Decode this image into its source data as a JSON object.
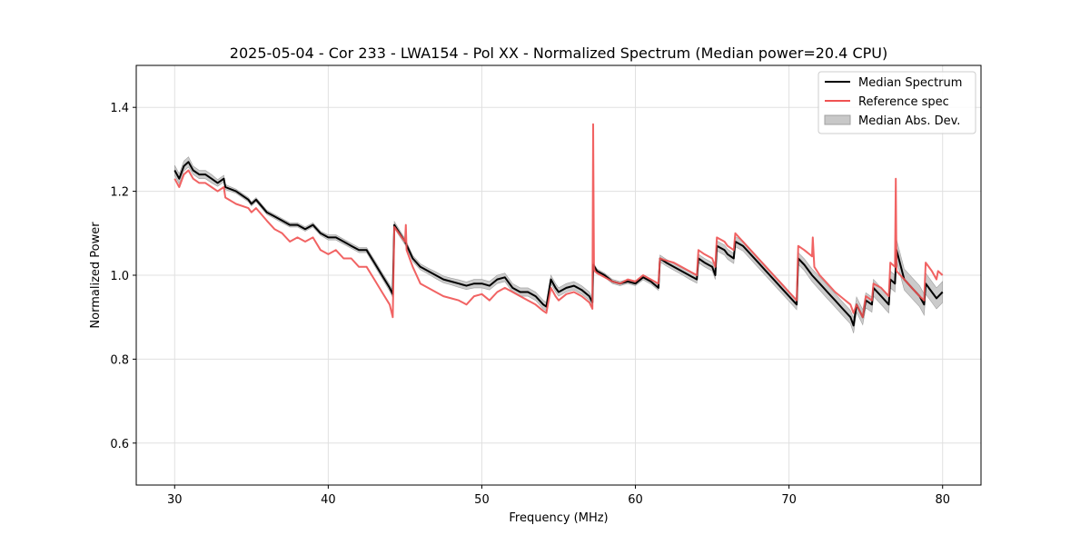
{
  "chart_data": {
    "type": "line",
    "title": "2025-05-04 - Cor 233 - LWA154 - Pol XX - Normalized Spectrum (Median power=20.4 CPU)",
    "xlabel": "Frequency (MHz)",
    "ylabel": "Normalized Power",
    "xlim": [
      27.5,
      82.5
    ],
    "ylim": [
      0.5,
      1.5
    ],
    "xticks": [
      30,
      40,
      50,
      60,
      70,
      80
    ],
    "xtick_labels": [
      "30",
      "40",
      "50",
      "60",
      "70",
      "80"
    ],
    "yticks": [
      0.6,
      0.8,
      1.0,
      1.2,
      1.4
    ],
    "ytick_labels": [
      "0.6",
      "0.8",
      "1.0",
      "1.2",
      "1.4"
    ],
    "grid": true,
    "legend_position": "top-right",
    "legend": [
      "Median Spectrum",
      "Reference spec",
      "Median Abs. Dev."
    ],
    "colors": {
      "median": "#000000",
      "reference": "#f05252",
      "mad": "#c8c8c8",
      "mad_edge": "#a0a0a0"
    },
    "series": [
      {
        "name": "Median Spectrum",
        "x": [
          30.0,
          30.3,
          30.6,
          30.9,
          31.2,
          31.6,
          32.0,
          32.4,
          32.8,
          33.2,
          33.3,
          34.0,
          34.8,
          35.0,
          35.3,
          36.0,
          36.5,
          37.0,
          37.5,
          38.0,
          38.5,
          39.0,
          39.5,
          40.0,
          40.5,
          41.0,
          41.5,
          42.0,
          42.5,
          43.0,
          43.5,
          44.0,
          44.2,
          44.3,
          45.0,
          45.5,
          46.0,
          46.5,
          47.0,
          47.5,
          48.0,
          48.5,
          49.0,
          49.5,
          50.0,
          50.5,
          51.0,
          51.5,
          52.0,
          52.5,
          53.0,
          53.5,
          54.0,
          54.2,
          54.5,
          54.8,
          55.0,
          55.5,
          56.0,
          56.5,
          57.0,
          57.2,
          57.25,
          57.5,
          58.0,
          58.5,
          59.0,
          59.5,
          60.0,
          60.5,
          61.0,
          61.5,
          61.6,
          62.0,
          62.5,
          63.0,
          63.5,
          64.0,
          64.1,
          64.5,
          65.0,
          65.2,
          65.3,
          65.8,
          66.0,
          66.4,
          66.5,
          67.0,
          67.5,
          68.0,
          68.5,
          69.0,
          69.5,
          70.0,
          70.5,
          70.6,
          71.0,
          71.5,
          72.0,
          72.5,
          73.0,
          73.5,
          74.0,
          74.2,
          74.4,
          74.8,
          75.0,
          75.4,
          75.5,
          76.0,
          76.5,
          76.6,
          76.9,
          77.0,
          77.5,
          78.0,
          78.5,
          78.8,
          78.9,
          79.3,
          79.6,
          80.0
        ],
        "values": [
          1.25,
          1.23,
          1.26,
          1.27,
          1.25,
          1.24,
          1.24,
          1.23,
          1.22,
          1.23,
          1.21,
          1.2,
          1.18,
          1.17,
          1.18,
          1.15,
          1.14,
          1.13,
          1.12,
          1.12,
          1.11,
          1.12,
          1.1,
          1.09,
          1.09,
          1.08,
          1.07,
          1.06,
          1.06,
          1.03,
          1.0,
          0.97,
          0.955,
          1.12,
          1.08,
          1.04,
          1.02,
          1.01,
          1.0,
          0.99,
          0.985,
          0.98,
          0.975,
          0.98,
          0.98,
          0.975,
          0.99,
          0.995,
          0.97,
          0.96,
          0.96,
          0.95,
          0.93,
          0.925,
          0.99,
          0.97,
          0.96,
          0.97,
          0.975,
          0.965,
          0.95,
          0.935,
          1.025,
          1.01,
          1.0,
          0.985,
          0.98,
          0.985,
          0.98,
          0.995,
          0.985,
          0.97,
          1.04,
          1.03,
          1.02,
          1.01,
          1.0,
          0.99,
          1.04,
          1.03,
          1.02,
          1.0,
          1.07,
          1.06,
          1.05,
          1.04,
          1.08,
          1.07,
          1.05,
          1.03,
          1.01,
          0.99,
          0.97,
          0.95,
          0.93,
          1.04,
          1.025,
          1.0,
          0.98,
          0.96,
          0.94,
          0.92,
          0.9,
          0.88,
          0.93,
          0.9,
          0.94,
          0.93,
          0.97,
          0.95,
          0.93,
          0.99,
          0.98,
          1.06,
          0.99,
          0.97,
          0.95,
          0.93,
          0.98,
          0.96,
          0.945,
          0.96
        ]
      },
      {
        "name": "Reference spec",
        "x": [
          30.0,
          30.3,
          30.6,
          30.9,
          31.2,
          31.6,
          32.0,
          32.4,
          32.8,
          33.2,
          33.3,
          34.0,
          34.8,
          35.0,
          35.3,
          36.0,
          36.5,
          37.0,
          37.5,
          38.0,
          38.5,
          39.0,
          39.5,
          40.0,
          40.5,
          41.0,
          41.5,
          42.0,
          42.5,
          43.0,
          43.5,
          44.0,
          44.2,
          44.3,
          45.0,
          45.05,
          45.1,
          45.5,
          46.0,
          46.5,
          47.0,
          47.5,
          48.0,
          48.5,
          49.0,
          49.5,
          50.0,
          50.5,
          51.0,
          51.5,
          52.0,
          52.5,
          53.0,
          53.5,
          54.0,
          54.2,
          54.5,
          54.8,
          55.0,
          55.5,
          56.0,
          56.5,
          57.0,
          57.2,
          57.25,
          57.3,
          57.35,
          57.5,
          58.0,
          58.5,
          59.0,
          59.5,
          60.0,
          60.5,
          61.0,
          61.5,
          61.6,
          62.0,
          62.5,
          63.0,
          63.5,
          64.0,
          64.1,
          64.5,
          65.0,
          65.2,
          65.3,
          65.8,
          66.0,
          66.4,
          66.5,
          67.0,
          67.5,
          68.0,
          68.5,
          69.0,
          69.5,
          70.0,
          70.5,
          70.6,
          71.0,
          71.5,
          71.55,
          71.65,
          72.0,
          72.5,
          73.0,
          73.5,
          74.0,
          74.2,
          74.4,
          74.8,
          75.0,
          75.4,
          75.5,
          76.0,
          76.5,
          76.6,
          76.9,
          76.95,
          77.0,
          77.5,
          78.0,
          78.5,
          78.8,
          78.9,
          79.3,
          79.6,
          79.7,
          80.0
        ],
        "values": [
          1.23,
          1.21,
          1.24,
          1.25,
          1.23,
          1.22,
          1.22,
          1.21,
          1.2,
          1.21,
          1.185,
          1.17,
          1.16,
          1.15,
          1.16,
          1.13,
          1.11,
          1.1,
          1.08,
          1.09,
          1.08,
          1.09,
          1.06,
          1.05,
          1.06,
          1.04,
          1.04,
          1.02,
          1.02,
          0.99,
          0.96,
          0.93,
          0.9,
          1.115,
          1.08,
          1.12,
          1.06,
          1.02,
          0.98,
          0.97,
          0.96,
          0.95,
          0.945,
          0.94,
          0.93,
          0.95,
          0.955,
          0.94,
          0.96,
          0.97,
          0.96,
          0.95,
          0.94,
          0.93,
          0.915,
          0.91,
          0.97,
          0.95,
          0.94,
          0.955,
          0.96,
          0.95,
          0.935,
          0.92,
          1.36,
          1.02,
          1.01,
          1.005,
          0.995,
          0.985,
          0.98,
          0.99,
          0.985,
          1.0,
          0.99,
          0.98,
          1.04,
          1.035,
          1.03,
          1.02,
          1.01,
          1.0,
          1.06,
          1.05,
          1.04,
          1.02,
          1.09,
          1.08,
          1.07,
          1.06,
          1.1,
          1.08,
          1.06,
          1.04,
          1.02,
          1.0,
          0.98,
          0.96,
          0.94,
          1.07,
          1.06,
          1.045,
          1.09,
          1.02,
          1.0,
          0.98,
          0.96,
          0.945,
          0.93,
          0.91,
          0.93,
          0.9,
          0.95,
          0.94,
          0.98,
          0.97,
          0.95,
          1.03,
          1.02,
          1.23,
          1.01,
          0.99,
          0.97,
          0.95,
          0.94,
          1.03,
          1.01,
          0.99,
          1.01,
          1.0
        ]
      }
    ],
    "mad_band": {
      "name": "Median Abs. Dev.",
      "x_from_series": "Median Spectrum",
      "half_width": [
        0.012,
        0.012,
        0.012,
        0.012,
        0.01,
        0.01,
        0.01,
        0.01,
        0.008,
        0.008,
        0.006,
        0.005,
        0.005,
        0.005,
        0.005,
        0.005,
        0.005,
        0.005,
        0.005,
        0.005,
        0.005,
        0.005,
        0.005,
        0.006,
        0.006,
        0.006,
        0.006,
        0.006,
        0.006,
        0.007,
        0.007,
        0.008,
        0.008,
        0.008,
        0.007,
        0.007,
        0.007,
        0.007,
        0.008,
        0.008,
        0.008,
        0.009,
        0.009,
        0.01,
        0.01,
        0.01,
        0.01,
        0.01,
        0.01,
        0.01,
        0.01,
        0.01,
        0.01,
        0.01,
        0.01,
        0.01,
        0.01,
        0.01,
        0.01,
        0.01,
        0.01,
        0.01,
        0.006,
        0.005,
        0.005,
        0.005,
        0.005,
        0.005,
        0.005,
        0.006,
        0.006,
        0.006,
        0.008,
        0.008,
        0.008,
        0.008,
        0.009,
        0.009,
        0.01,
        0.01,
        0.01,
        0.01,
        0.012,
        0.012,
        0.012,
        0.012,
        0.012,
        0.012,
        0.012,
        0.012,
        0.012,
        0.012,
        0.012,
        0.012,
        0.012,
        0.014,
        0.014,
        0.015,
        0.016,
        0.016,
        0.016,
        0.016,
        0.016,
        0.018,
        0.018,
        0.018,
        0.018,
        0.018,
        0.02,
        0.02,
        0.02,
        0.02,
        0.02,
        0.025,
        0.025,
        0.025,
        0.025,
        0.025,
        0.025,
        0.025,
        0.025,
        0.025
      ]
    }
  }
}
